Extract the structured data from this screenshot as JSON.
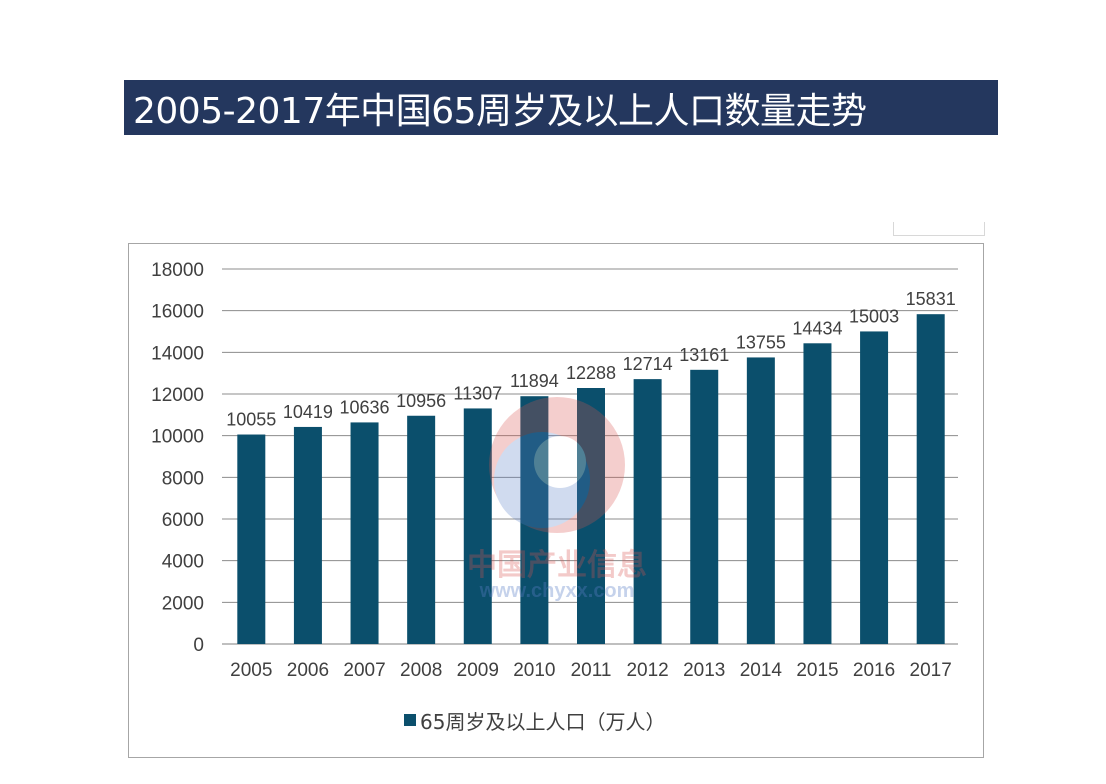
{
  "chart_data": {
    "type": "bar",
    "title": "2005-2017年中国65周岁及以上人口数量走势",
    "categories": [
      "2005",
      "2006",
      "2007",
      "2008",
      "2009",
      "2010",
      "2011",
      "2012",
      "2013",
      "2014",
      "2015",
      "2016",
      "2017"
    ],
    "series": [
      {
        "name": "65周岁及以上人口（万人）",
        "values": [
          10055,
          10419,
          10636,
          10956,
          11307,
          11894,
          12288,
          12714,
          13161,
          13755,
          14434,
          15003,
          15831
        ]
      }
    ],
    "xlabel": "",
    "ylabel": "",
    "ylim": [
      0,
      18000
    ],
    "yticks": [
      0,
      2000,
      4000,
      6000,
      8000,
      10000,
      12000,
      14000,
      16000,
      18000
    ],
    "grid": true,
    "legend_position": "bottom",
    "bar_color": "#0b4f6c"
  },
  "watermark": {
    "name": "中国产业信息",
    "url": "www.chyxx.com"
  }
}
